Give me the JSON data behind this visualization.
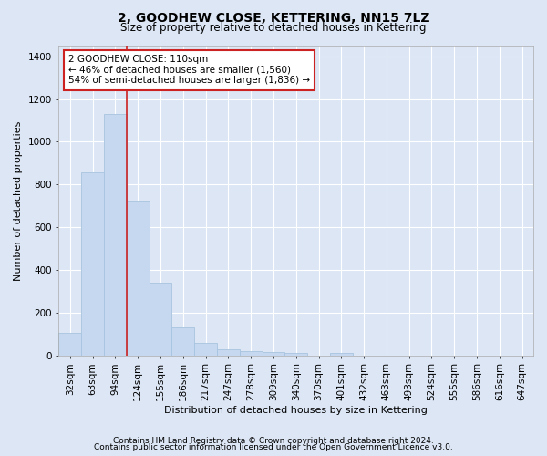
{
  "title": "2, GOODHEW CLOSE, KETTERING, NN15 7LZ",
  "subtitle": "Size of property relative to detached houses in Kettering",
  "xlabel": "Distribution of detached houses by size in Kettering",
  "ylabel": "Number of detached properties",
  "categories": [
    "32sqm",
    "63sqm",
    "94sqm",
    "124sqm",
    "155sqm",
    "186sqm",
    "217sqm",
    "247sqm",
    "278sqm",
    "309sqm",
    "340sqm",
    "370sqm",
    "401sqm",
    "432sqm",
    "463sqm",
    "493sqm",
    "524sqm",
    "555sqm",
    "586sqm",
    "616sqm",
    "647sqm"
  ],
  "values": [
    105,
    855,
    1130,
    725,
    340,
    130,
    60,
    30,
    20,
    15,
    10,
    0,
    10,
    0,
    0,
    0,
    0,
    0,
    0,
    0,
    0
  ],
  "bar_color": "#c5d8f0",
  "bar_edge_color": "#a8c4e0",
  "vline_color": "#cc2222",
  "vline_position": 2.5,
  "ylim": [
    0,
    1450
  ],
  "yticks": [
    0,
    200,
    400,
    600,
    800,
    1000,
    1200,
    1400
  ],
  "annotation_text": "2 GOODHEW CLOSE: 110sqm\n← 46% of detached houses are smaller (1,560)\n54% of semi-detached houses are larger (1,836) →",
  "annotation_box_facecolor": "#ffffff",
  "annotation_box_edgecolor": "#cc2222",
  "footer_line1": "Contains HM Land Registry data © Crown copyright and database right 2024.",
  "footer_line2": "Contains public sector information licensed under the Open Government Licence v3.0.",
  "background_color": "#dce6f5",
  "plot_bg_color": "#dce6f5",
  "grid_color": "#ffffff",
  "title_fontsize": 10,
  "subtitle_fontsize": 8.5,
  "xlabel_fontsize": 8,
  "ylabel_fontsize": 8,
  "tick_fontsize": 7.5,
  "annotation_fontsize": 7.5,
  "footer_fontsize": 6.5
}
